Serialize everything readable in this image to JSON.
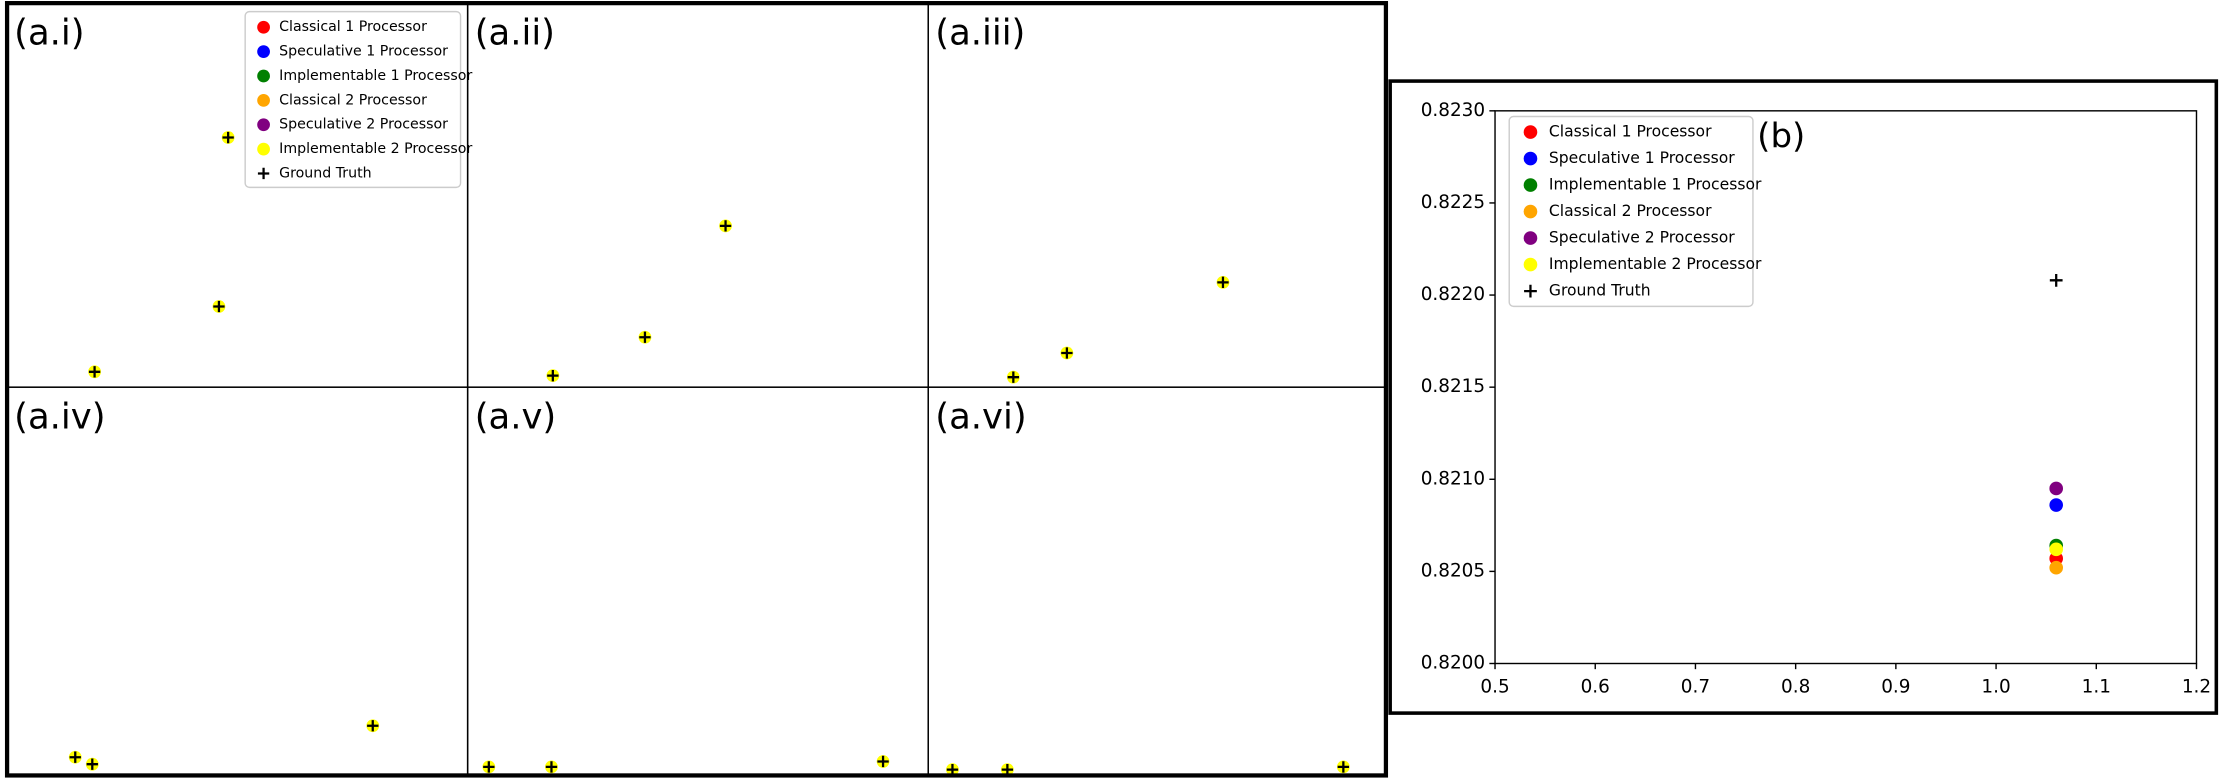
{
  "chart_data": [
    {
      "type": "scatter",
      "title": "(a.i)",
      "x": [
        0.19,
        0.46,
        0.48
      ],
      "y": [
        0.04,
        0.21,
        0.65
      ],
      "xlim": [
        0,
        1
      ],
      "ylim": [
        0,
        1
      ],
      "legend": [
        {
          "name": "Classical 1 Processor",
          "color": "#ff0000"
        },
        {
          "name": "Speculative 1 Processor",
          "color": "#0000ff"
        },
        {
          "name": "Implementable 1 Processor",
          "color": "#008000"
        },
        {
          "name": "Classical 2 Processor",
          "color": "#ffa500"
        },
        {
          "name": "Speculative 2 Processor",
          "color": "#800080"
        },
        {
          "name": "Implementable 2 Processor",
          "color": "#ffff00"
        },
        {
          "name": "Ground Truth",
          "color": "#000000",
          "marker": "+"
        }
      ]
    },
    {
      "type": "scatter",
      "title": "(a.ii)",
      "x": [
        0.185,
        0.385,
        0.56
      ],
      "y": [
        0.03,
        0.13,
        0.42
      ],
      "xlim": [
        0,
        1
      ],
      "ylim": [
        0,
        1
      ]
    },
    {
      "type": "scatter",
      "title": "(a.iii)",
      "x": [
        0.186,
        0.303,
        0.644
      ],
      "y": [
        0.026,
        0.089,
        0.273
      ],
      "xlim": [
        0,
        1
      ],
      "ylim": [
        0,
        1
      ]
    },
    {
      "type": "scatter",
      "title": "(a.iv)",
      "x": [
        0.148,
        0.185,
        0.794
      ],
      "y": [
        0.047,
        0.029,
        0.128
      ],
      "xlim": [
        0,
        1
      ],
      "ylim": [
        0,
        1
      ]
    },
    {
      "type": "scatter",
      "title": "(a.v)",
      "x": [
        0.046,
        0.182,
        0.902
      ],
      "y": [
        0.022,
        0.022,
        0.036
      ],
      "xlim": [
        0,
        1
      ],
      "ylim": [
        0,
        1
      ]
    },
    {
      "type": "scatter",
      "title": "(a.vi)",
      "x": [
        0.053,
        0.173,
        0.907
      ],
      "y": [
        0.015,
        0.015,
        0.022
      ],
      "xlim": [
        0,
        1
      ],
      "ylim": [
        0,
        1
      ]
    },
    {
      "type": "scatter",
      "title": "(b)",
      "legend_loc": "upper left",
      "xlim": [
        0.5,
        1.2
      ],
      "xticks": [
        0.5,
        0.6,
        0.7,
        0.8,
        0.9,
        {
          "value": 1,
          "label": "1.0"
        },
        1.1,
        1.2
      ],
      "ylim": [
        0.82,
        0.823
      ],
      "yticks": [
        {
          "value": 0.82,
          "label": "0.8200"
        },
        {
          "value": 0.8205,
          "label": "0.8205"
        },
        {
          "value": 0.821,
          "label": "0.8210"
        },
        {
          "value": 0.8215,
          "label": "0.8215"
        },
        {
          "value": 0.822,
          "label": "0.8220"
        },
        {
          "value": 0.8225,
          "label": "0.8225"
        },
        {
          "value": 0.823,
          "label": "0.8230"
        }
      ],
      "series": [
        {
          "name": "Classical 1 Processor",
          "color": "#ff0000",
          "x": [
            1.06
          ],
          "values": [
            0.82057
          ]
        },
        {
          "name": "Speculative 1 Processor",
          "color": "#0000ff",
          "x": [
            1.06
          ],
          "values": [
            0.82086
          ]
        },
        {
          "name": "Implementable 1 Processor",
          "color": "#008000",
          "x": [
            1.06
          ],
          "values": [
            0.82064
          ]
        },
        {
          "name": "Classical 2 Processor",
          "color": "#ffa500",
          "x": [
            1.06
          ],
          "values": [
            0.82052
          ]
        },
        {
          "name": "Speculative 2 Processor",
          "color": "#800080",
          "x": [
            1.06
          ],
          "values": [
            0.82095
          ]
        },
        {
          "name": "Implementable 2 Processor",
          "color": "#ffff00",
          "x": [
            1.06
          ],
          "values": [
            0.82062
          ]
        },
        {
          "name": "Ground Truth",
          "color": "#000000",
          "marker": "+",
          "x": [
            1.06
          ],
          "values": [
            0.82208
          ]
        }
      ]
    }
  ]
}
